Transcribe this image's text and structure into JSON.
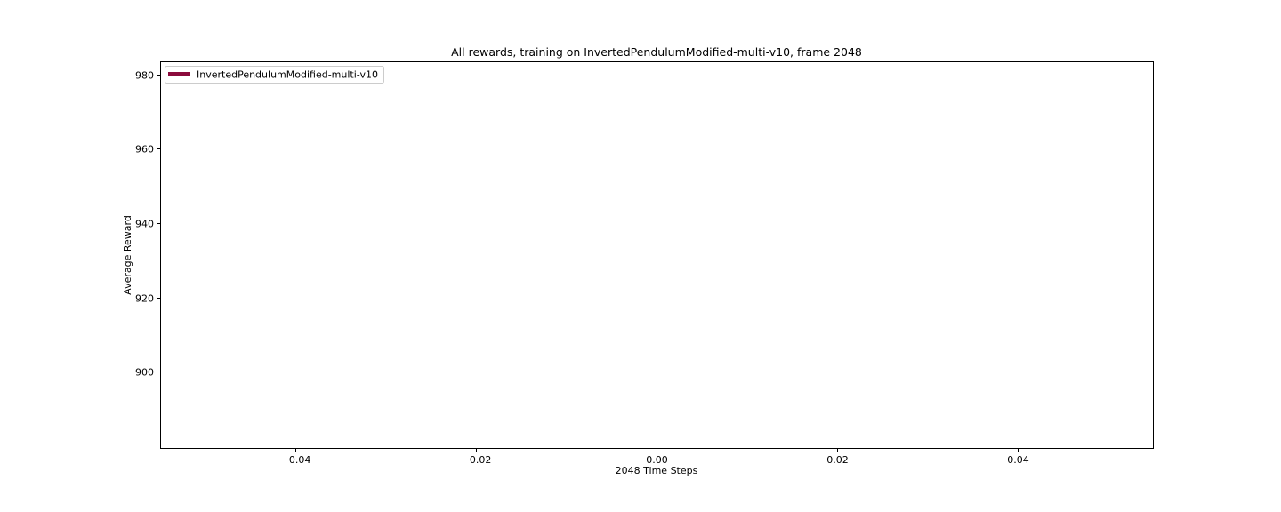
{
  "chart_data": {
    "type": "line",
    "title": "All rewards, training on InvertedPendulumModified-multi-v10, frame 2048",
    "xlabel": "2048 Time Steps",
    "ylabel": "Average Reward",
    "xlim": [
      -0.055,
      0.055
    ],
    "ylim": [
      879.5,
      983.5
    ],
    "xticks": [
      -0.04,
      -0.02,
      0.0,
      0.02,
      0.04
    ],
    "xtick_labels": [
      "−0.04",
      "−0.02",
      "0.00",
      "0.02",
      "0.04"
    ],
    "yticks": [
      900,
      920,
      940,
      960,
      980
    ],
    "ytick_labels": [
      "900",
      "920",
      "940",
      "960",
      "980"
    ],
    "grid": false,
    "legend_position": "upper left",
    "series": [
      {
        "name": "InvertedPendulumModified-multi-v10",
        "color": "#8b0a3c",
        "x": [],
        "y": []
      }
    ]
  }
}
